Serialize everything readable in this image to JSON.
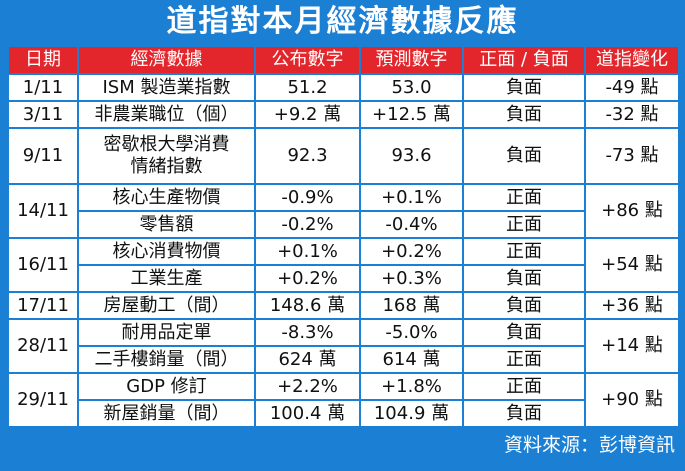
{
  "title": "道指對本月經濟數據反應",
  "table": {
    "header": [
      "日期",
      "經濟數據",
      "公布數字",
      "預測數字",
      "正面 / 負面",
      "道指變化"
    ],
    "groups": [
      {
        "date": "1/11",
        "change": "-49 點",
        "rows": [
          [
            "ISM 製造業指數",
            "51.2",
            "53.0",
            "負面"
          ]
        ]
      },
      {
        "date": "3/11",
        "change": "-32 點",
        "rows": [
          [
            "非農業職位（個）",
            "+9.2 萬",
            "+12.5 萬",
            "負面"
          ]
        ]
      },
      {
        "date": "9/11",
        "change": "-73 點",
        "rows": [
          [
            "密歇根大學消費\n情緒指數",
            "92.3",
            "93.6",
            "負面"
          ]
        ]
      },
      {
        "date": "14/11",
        "change": "+86 點",
        "rows": [
          [
            "核心生產物價",
            "-0.9%",
            "+0.1%",
            "正面"
          ],
          [
            "零售額",
            "-0.2%",
            "-0.4%",
            "正面"
          ]
        ]
      },
      {
        "date": "16/11",
        "change": "+54 點",
        "rows": [
          [
            "核心消費物價",
            "+0.1%",
            "+0.2%",
            "正面"
          ],
          [
            "工業生產",
            "+0.2%",
            "+0.3%",
            "負面"
          ]
        ]
      },
      {
        "date": "17/11",
        "change": "+36 點",
        "rows": [
          [
            "房屋動工（間）",
            "148.6 萬",
            "168 萬",
            "負面"
          ]
        ]
      },
      {
        "date": "28/11",
        "change": "+14 點",
        "rows": [
          [
            "耐用品定單",
            "-8.3%",
            "-5.0%",
            "負面"
          ],
          [
            "二手樓銷量（間）",
            "624 萬",
            "614 萬",
            "正面"
          ]
        ]
      },
      {
        "date": "29/11",
        "change": "+90 點",
        "rows": [
          [
            "GDP 修訂",
            "+2.2%",
            "+1.8%",
            "正面"
          ],
          [
            "新屋銷量（間）",
            "100.4 萬",
            "104.9 萬",
            "負面"
          ]
        ]
      }
    ]
  },
  "source": "資料來源：彭博資訊"
}
